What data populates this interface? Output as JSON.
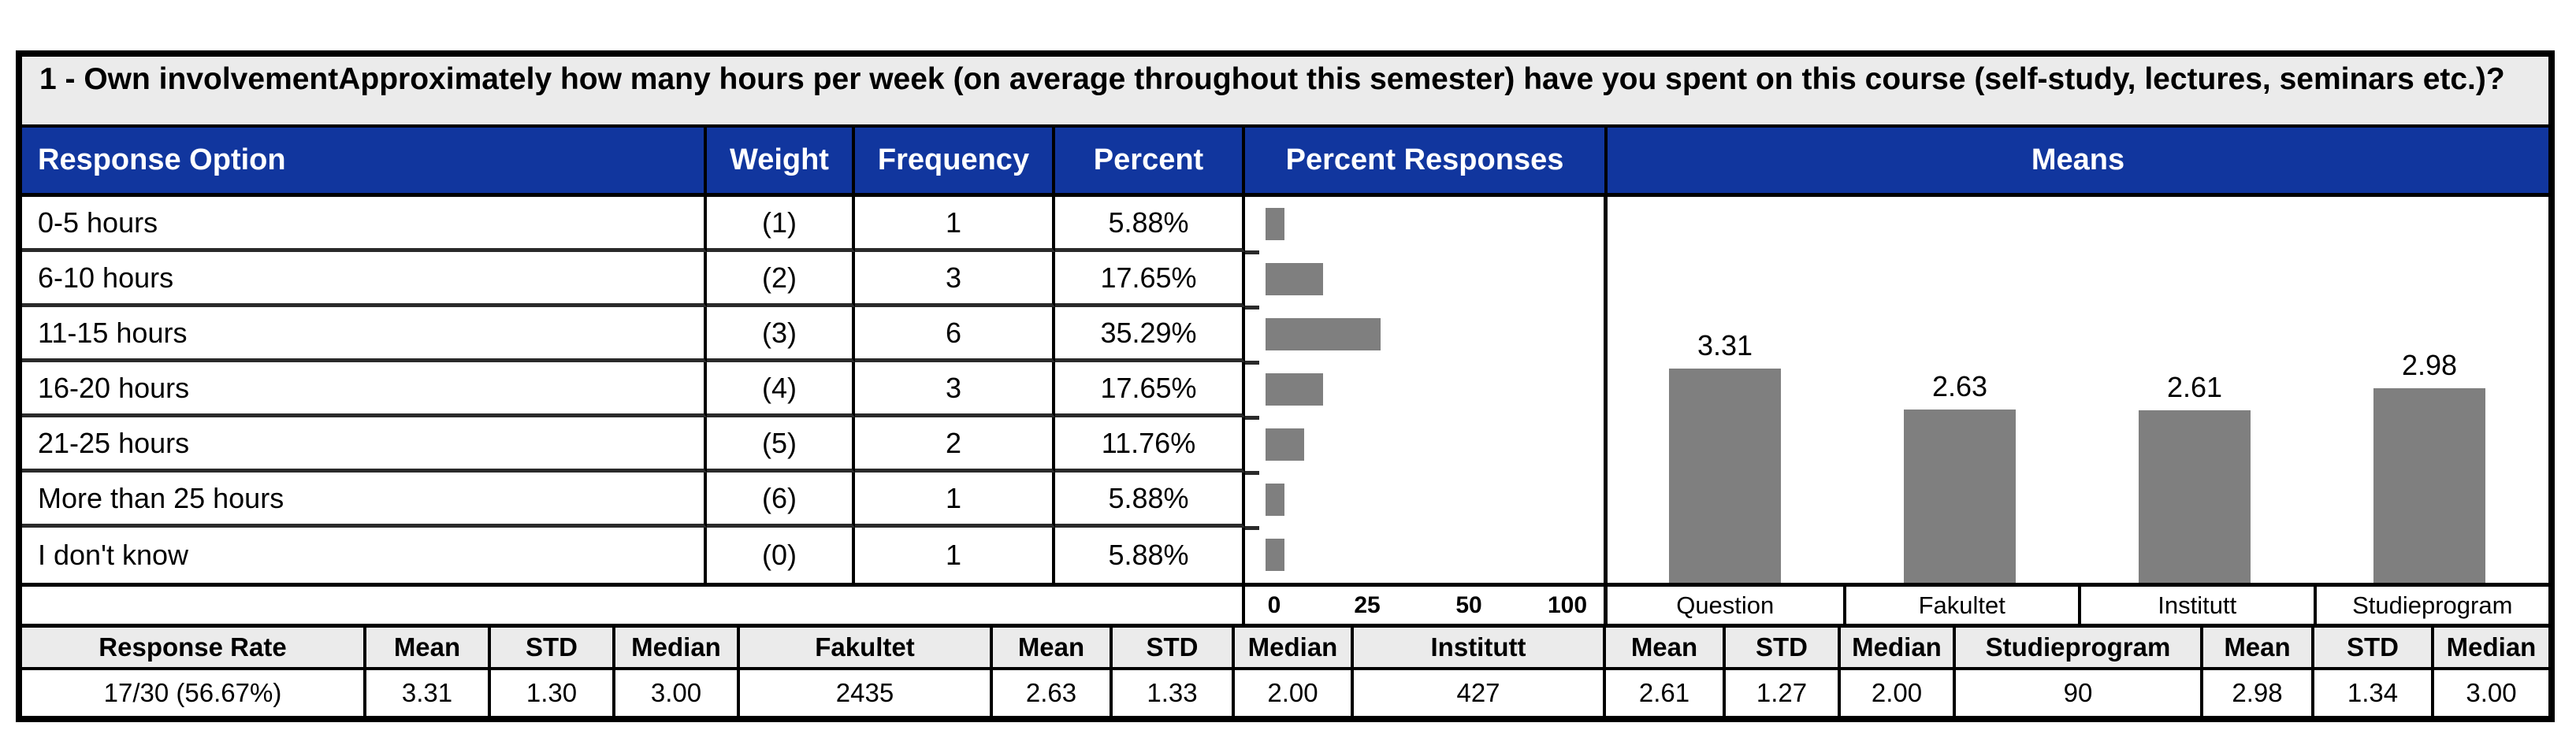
{
  "title": "1 - Own involvementApproximately how many hours per week (on average throughout this semester) have you spent on this course (self-study, lectures, seminars etc.)?",
  "colors": {
    "header_blue": "#11369E",
    "bar_gray": "#7F7F7F",
    "panel_gray": "#EBEBEB"
  },
  "table": {
    "headers": [
      "Response Option",
      "Weight",
      "Frequency",
      "Percent",
      "Percent Responses",
      "Means"
    ],
    "rows": [
      {
        "option": "0-5 hours",
        "weight": "(1)",
        "frequency": "1",
        "percent": "5.88%",
        "percent_value": 5.88
      },
      {
        "option": "6-10 hours",
        "weight": "(2)",
        "frequency": "3",
        "percent": "17.65%",
        "percent_value": 17.65
      },
      {
        "option": "11-15 hours",
        "weight": "(3)",
        "frequency": "6",
        "percent": "35.29%",
        "percent_value": 35.29
      },
      {
        "option": "16-20 hours",
        "weight": "(4)",
        "frequency": "3",
        "percent": "17.65%",
        "percent_value": 17.65
      },
      {
        "option": "21-25 hours",
        "weight": "(5)",
        "frequency": "2",
        "percent": "11.76%",
        "percent_value": 11.76
      },
      {
        "option": "More than 25 hours",
        "weight": "(6)",
        "frequency": "1",
        "percent": "5.88%",
        "percent_value": 5.88
      },
      {
        "option": "I don't know",
        "weight": "(0)",
        "frequency": "1",
        "percent": "5.88%",
        "percent_value": 5.88
      }
    ]
  },
  "percent_axis_ticks": [
    "0",
    "25",
    "50",
    "100"
  ],
  "means_chart": {
    "groups": [
      {
        "label": "Question",
        "mean": 3.31,
        "mean_label": "3.31"
      },
      {
        "label": "Fakultet",
        "mean": 2.63,
        "mean_label": "2.63"
      },
      {
        "label": "Institutt",
        "mean": 2.61,
        "mean_label": "2.61"
      },
      {
        "label": "Studieprogram",
        "mean": 2.98,
        "mean_label": "2.98"
      }
    ]
  },
  "summary": {
    "headers": [
      "Response Rate",
      "Mean",
      "STD",
      "Median",
      "Fakultet",
      "Mean",
      "STD",
      "Median",
      "Institutt",
      "Mean",
      "STD",
      "Median",
      "Studieprogram",
      "Mean",
      "STD",
      "Median"
    ],
    "values": [
      "17/30 (56.67%)",
      "3.31",
      "1.30",
      "3.00",
      "2435",
      "2.63",
      "1.33",
      "2.00",
      "427",
      "2.61",
      "1.27",
      "2.00",
      "90",
      "2.98",
      "1.34",
      "3.00"
    ]
  },
  "chart_data": [
    {
      "type": "bar",
      "title": "Percent Responses",
      "orientation": "horizontal",
      "categories": [
        "0-5 hours",
        "6-10 hours",
        "11-15 hours",
        "16-20 hours",
        "21-25 hours",
        "More than 25 hours",
        "I don't know"
      ],
      "values": [
        5.88,
        17.65,
        35.29,
        17.65,
        11.76,
        5.88,
        5.88
      ],
      "xlabel": "",
      "ylabel": "",
      "tick_labels": [
        "0",
        "25",
        "50",
        "100"
      ],
      "xlim": [
        0,
        100
      ],
      "grid": false,
      "legend": false
    },
    {
      "type": "bar",
      "title": "Means",
      "orientation": "vertical",
      "categories": [
        "Question",
        "Fakultet",
        "Institutt",
        "Studieprogram"
      ],
      "values": [
        3.31,
        2.63,
        2.61,
        2.98
      ],
      "data_labels": [
        "3.31",
        "2.63",
        "2.61",
        "2.98"
      ],
      "xlabel": "",
      "ylabel": "",
      "ylim": [
        0,
        6
      ],
      "grid": false,
      "legend": false
    }
  ]
}
